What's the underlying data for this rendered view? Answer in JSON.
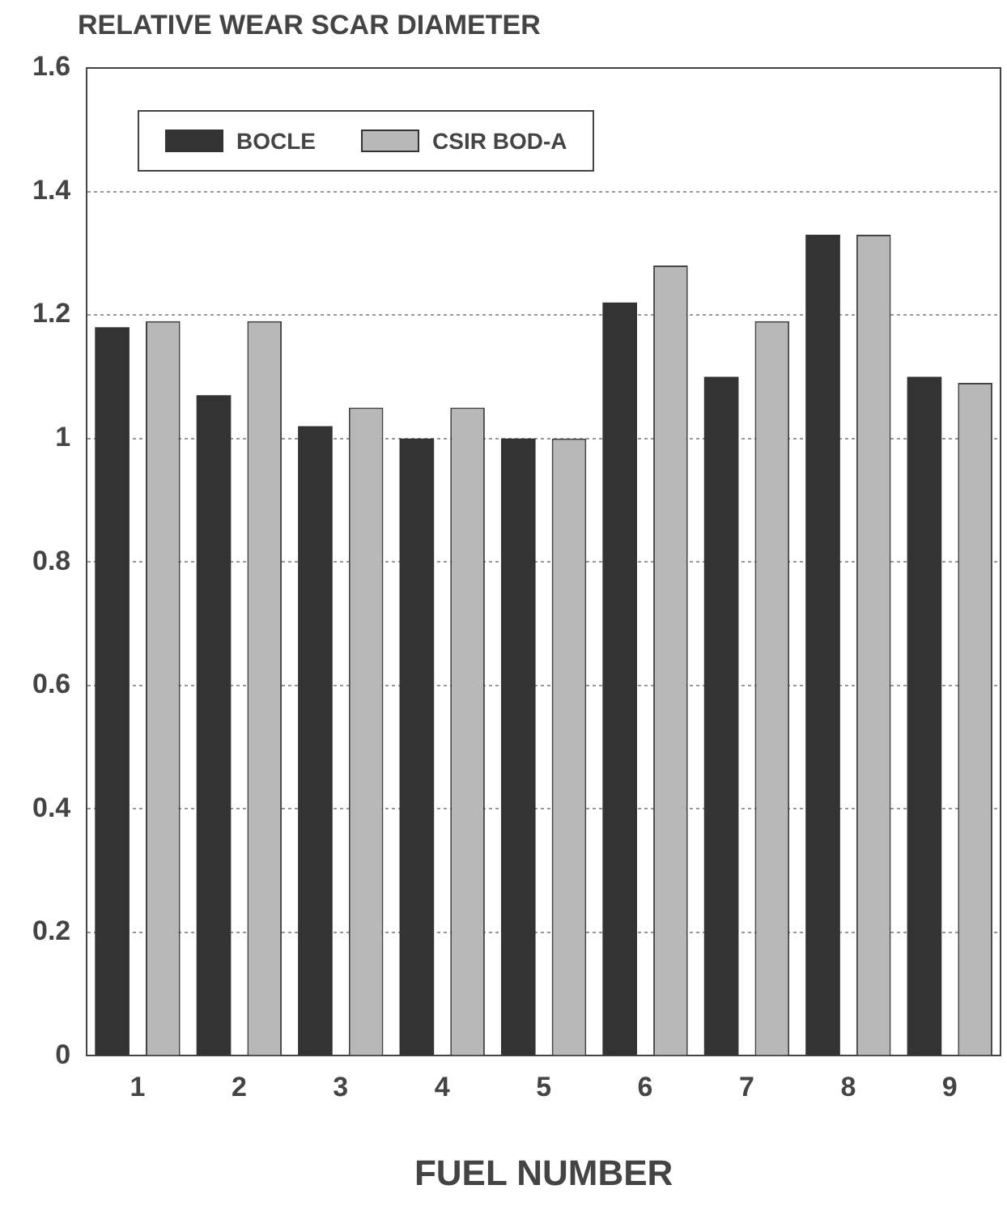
{
  "chart_data": {
    "type": "bar",
    "ylabel": "RELATIVE WEAR SCAR DIAMETER",
    "xlabel": "FUEL NUMBER",
    "categories": [
      "1",
      "2",
      "3",
      "4",
      "5",
      "6",
      "7",
      "8",
      "9"
    ],
    "series": [
      {
        "name": "BOCLE",
        "color": "#333333",
        "values": [
          1.18,
          1.07,
          1.02,
          1.0,
          1.0,
          1.22,
          1.1,
          1.33,
          1.1
        ]
      },
      {
        "name": "CSIR BOD-A",
        "color": "#b8b8b8",
        "type": "bar",
        "values": [
          1.19,
          1.19,
          1.05,
          1.05,
          1.0,
          1.28,
          1.19,
          1.33,
          1.09
        ]
      }
    ],
    "ylim": [
      0,
      1.6
    ],
    "yticks": [
      0,
      0.2,
      0.4,
      0.6,
      0.8,
      1,
      1.2,
      1.4,
      1.6
    ],
    "grid": "y",
    "legend": "top left"
  }
}
